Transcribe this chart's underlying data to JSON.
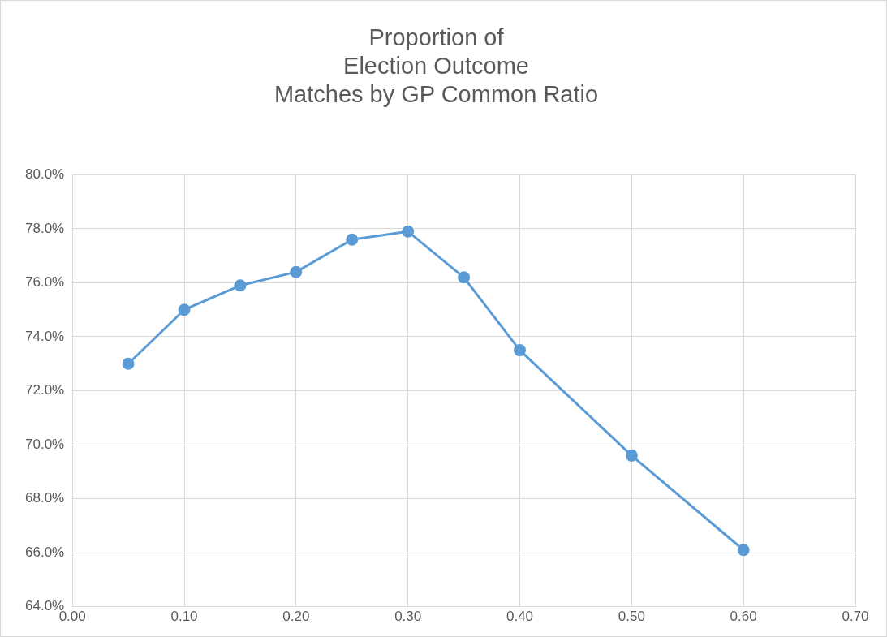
{
  "chart_data": {
    "type": "line",
    "title": "Proportion of\nElection Outcome\nMatches by GP Common Ratio",
    "x": [
      0.05,
      0.1,
      0.15,
      0.2,
      0.25,
      0.3,
      0.35,
      0.4,
      0.5,
      0.6
    ],
    "series": [
      {
        "color": "#5b9bd5",
        "values": [
          73.0,
          75.0,
          75.9,
          76.4,
          77.6,
          77.9,
          76.2,
          73.5,
          69.6,
          66.1
        ]
      }
    ],
    "xlim": [
      0,
      0.7
    ],
    "xticks": [
      {
        "value": 0,
        "label": "0.00"
      },
      {
        "value": 0.1,
        "label": "0.10"
      },
      {
        "value": 0.2,
        "label": "0.20"
      },
      {
        "value": 0.3,
        "label": "0.30"
      },
      {
        "value": 0.4,
        "label": "0.40"
      },
      {
        "value": 0.5,
        "label": "0.50"
      },
      {
        "value": 0.6,
        "label": "0.60"
      },
      {
        "value": 0.7,
        "label": "0.70"
      }
    ],
    "ylim": [
      64,
      80
    ],
    "yticks": [
      {
        "value": 64,
        "label": "64.0%"
      },
      {
        "value": 66,
        "label": "66.0%"
      },
      {
        "value": 68,
        "label": "68.0%"
      },
      {
        "value": 70,
        "label": "70.0%"
      },
      {
        "value": 72,
        "label": "72.0%"
      },
      {
        "value": 74,
        "label": "74.0%"
      },
      {
        "value": 76,
        "label": "76.0%"
      },
      {
        "value": 78,
        "label": "78.0%"
      },
      {
        "value": 80,
        "label": "80.0%"
      }
    ],
    "grid": true,
    "marker": "circle",
    "line_style": "solid",
    "legend": false
  }
}
